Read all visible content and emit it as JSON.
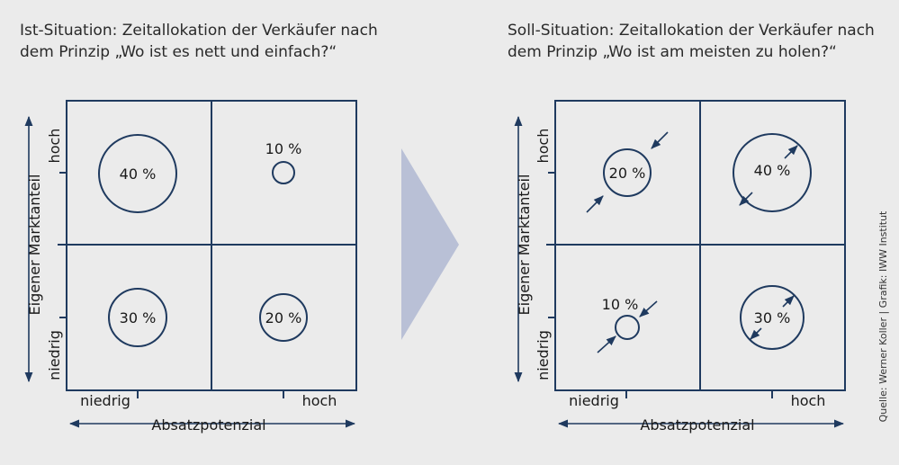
{
  "left": {
    "title_line1": "Ist-Situation: Zeitallokation der Verkäufer nach",
    "title_line2": "dem Prinzip „Wo ist es nett und einfach?“",
    "y_axis_label": "Eigener Marktanteil",
    "y_high": "hoch",
    "y_low": "niedrig",
    "x_axis_label": "Absatzpotenzial",
    "x_low": "niedrig",
    "x_high": "hoch",
    "q_top_left": "40 %",
    "q_top_right": "10 %",
    "q_bottom_left": "30 %",
    "q_bottom_right": "20 %"
  },
  "right": {
    "title_line1": "Soll-Situation: Zeitallokation der Verkäufer nach",
    "title_line2": "dem Prinzip „Wo ist am meisten zu holen?“",
    "y_axis_label": "Eigener Marktanteil",
    "y_high": "hoch",
    "y_low": "niedrig",
    "x_axis_label": "Absatzpotenzial",
    "x_low": "niedrig",
    "x_high": "hoch",
    "q_top_left": "20 %",
    "q_top_right": "40 %",
    "q_bottom_left": "10 %",
    "q_bottom_right": "30 %"
  },
  "source": "Quelle: Werner Koller | Grafik: IWW Institut",
  "colors": {
    "line": "#1f3a5f",
    "arrow_fill": "#b9c0d6",
    "background": "#ebebeb"
  }
}
